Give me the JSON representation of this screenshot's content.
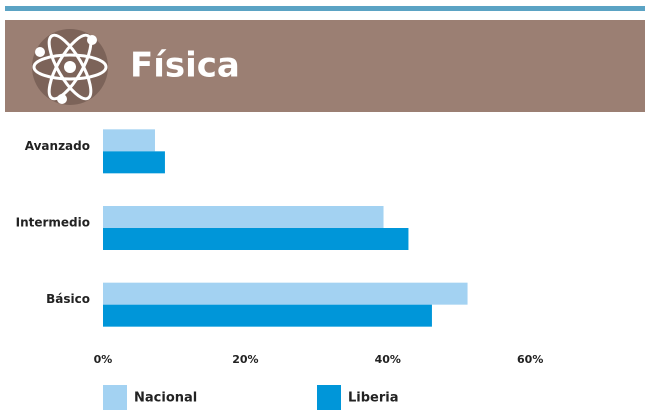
{
  "chart_data": {
    "type": "bar",
    "orientation": "horizontal",
    "title": "Física",
    "categories": [
      "Avanzado",
      "Intermedio",
      "Básico"
    ],
    "series": [
      {
        "name": "Nacional",
        "color": "#a3d2f2",
        "values": [
          7.3,
          39.4,
          51.2
        ]
      },
      {
        "name": "Liberia",
        "color": "#0096d9",
        "values": [
          8.7,
          42.9,
          46.2
        ]
      }
    ],
    "xlim": [
      0,
      75
    ],
    "xticks": [
      {
        "value": 0,
        "label": "0%"
      },
      {
        "value": 20,
        "label": "20%"
      },
      {
        "value": 40,
        "label": "40%"
      },
      {
        "value": 60,
        "label": "60%"
      }
    ],
    "grid": false
  }
}
